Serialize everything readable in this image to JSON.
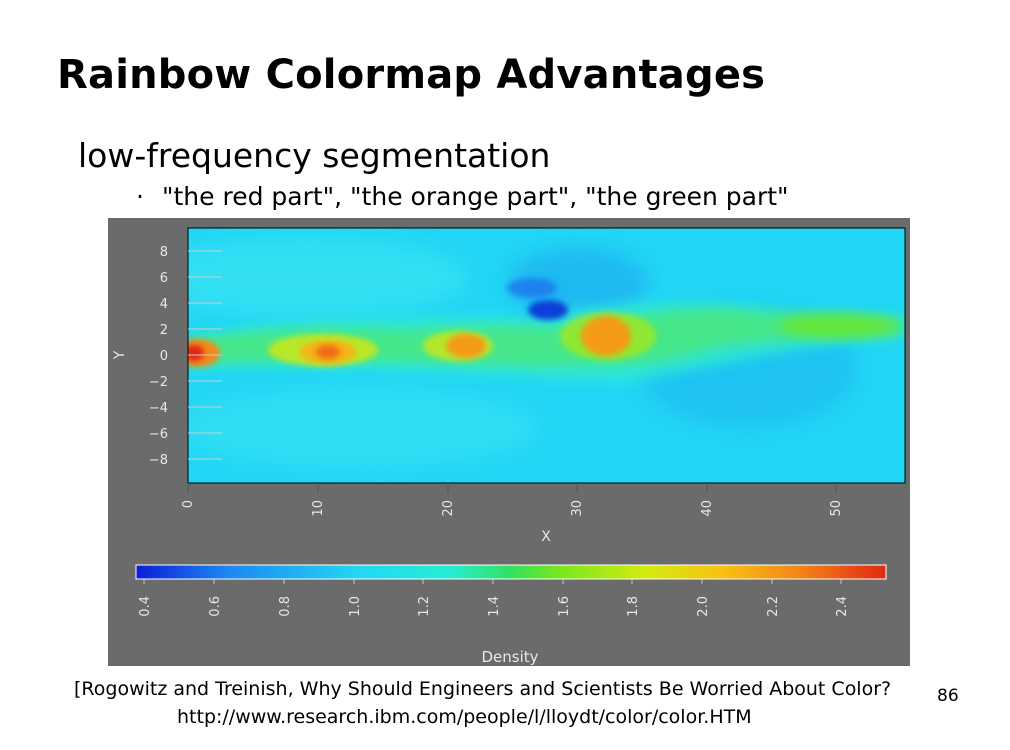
{
  "slide": {
    "title": "Rainbow Colormap Advantages",
    "bullet": "low-frequency segmentation",
    "subbullet_marker": "·",
    "subbullet": "\"the red part\", \"the orange part\", \"the green part\"",
    "citation_line1": "[Rogowitz and Treinish, Why Should Engineers and Scientists Be Worried About Color?",
    "citation_line2": "http://www.research.ibm.com/people/l/lloydt/color/color.HTM",
    "page_number": "86"
  },
  "figure": {
    "x_label": "X",
    "y_label": "Y",
    "colorbar_label": "Density",
    "x_ticks": [
      "0",
      "10",
      "20",
      "30",
      "40",
      "50"
    ],
    "y_ticks": [
      "8",
      "6",
      "4",
      "2",
      "0",
      "−2",
      "−4",
      "−6",
      "−8"
    ],
    "colorbar_ticks": [
      "0.4",
      "0.6",
      "0.8",
      "1.0",
      "1.2",
      "1.4",
      "1.6",
      "1.8",
      "2.0",
      "2.2",
      "2.4"
    ],
    "colors": {
      "background": "#6b6b6b",
      "field_base": "#22d6f5",
      "rainbow": [
        "#0a1ed8",
        "#1d86f2",
        "#22d8f5",
        "#27eed2",
        "#34e060",
        "#74e81e",
        "#d4ea10",
        "#f7c214",
        "#f58818",
        "#e02814"
      ]
    }
  }
}
